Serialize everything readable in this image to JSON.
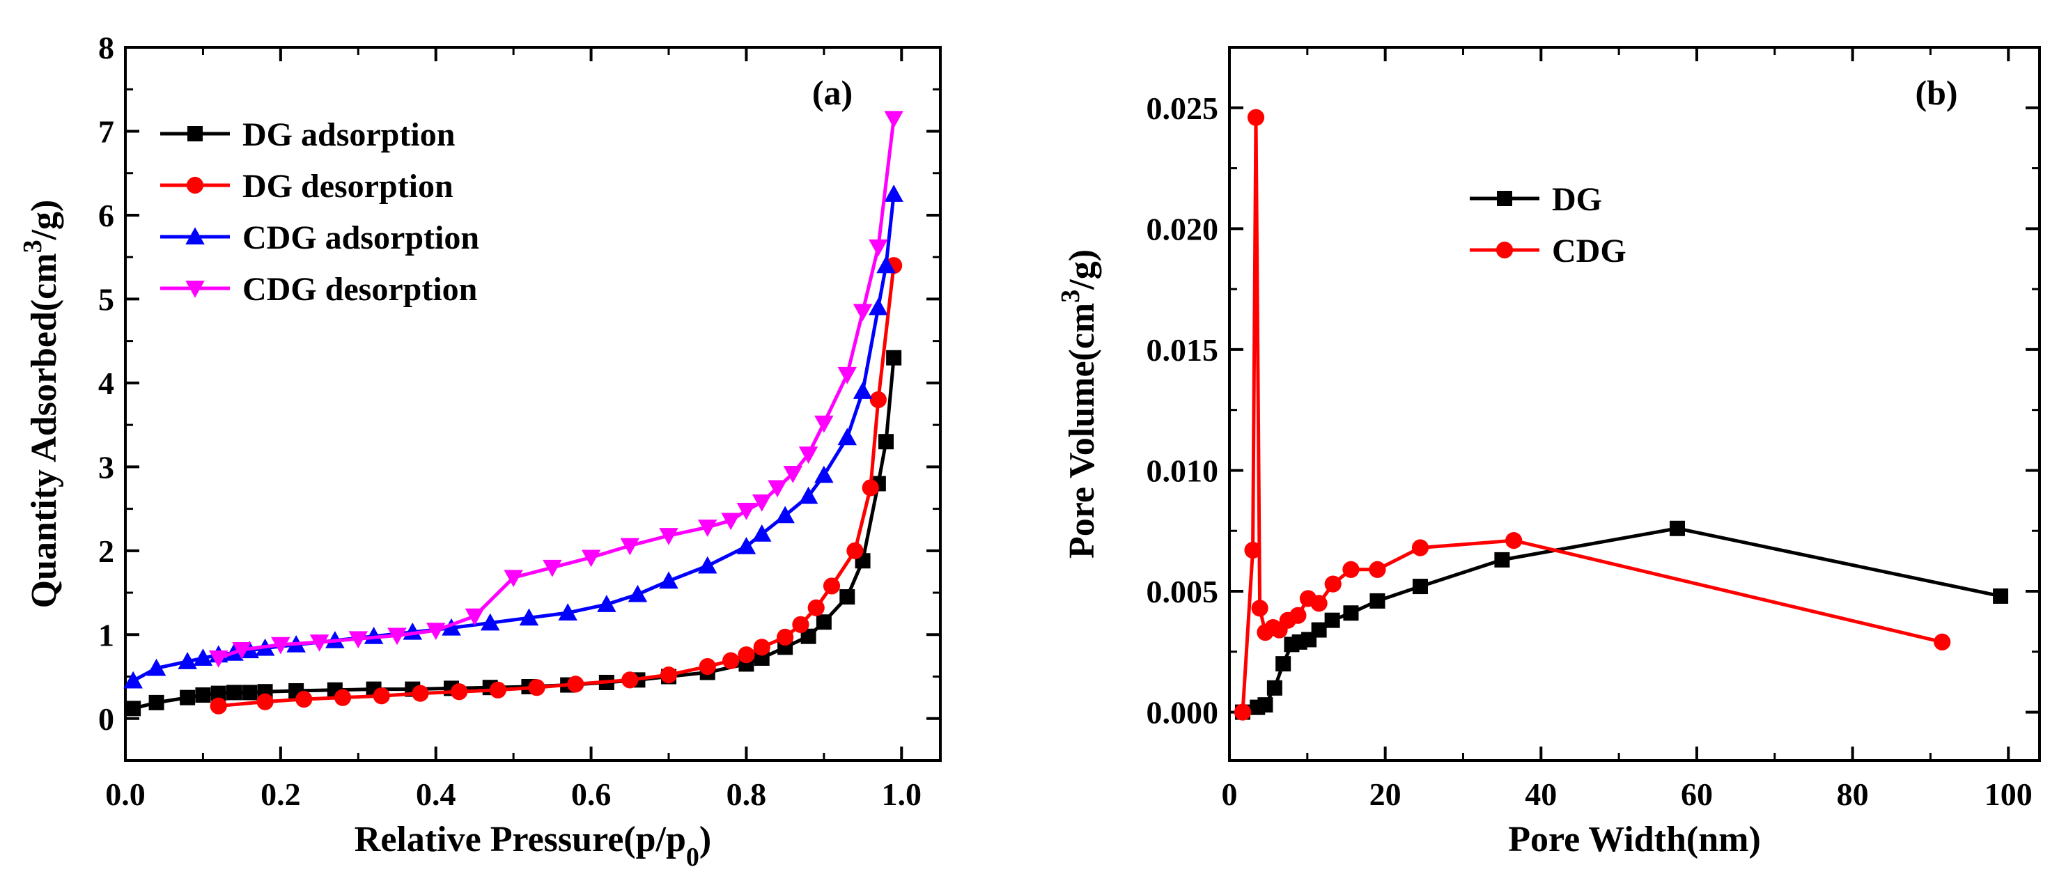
{
  "chart_data": [
    {
      "type": "line",
      "panel_label": "(a)",
      "xlabel": "Relative Pressure(p/p",
      "xlabel_sub": "0",
      "xlabel_suffix": ")",
      "ylabel": "Quantity Adsorbed(cm",
      "ylabel_sup": "3",
      "ylabel_suffix": "/g)",
      "xlim": [
        0.0,
        1.05
      ],
      "ylim": [
        -0.5,
        8.0
      ],
      "xticks": [
        0.0,
        0.2,
        0.4,
        0.6,
        0.8,
        1.0
      ],
      "xtick_labels": [
        "0.0",
        "0.2",
        "0.4",
        "0.6",
        "0.8",
        "1.0"
      ],
      "yticks": [
        0,
        1,
        2,
        3,
        4,
        5,
        6,
        7,
        8
      ],
      "ytick_labels": [
        "0",
        "1",
        "2",
        "3",
        "4",
        "5",
        "6",
        "7",
        "8"
      ],
      "grid": false,
      "legend_position": "top-left",
      "series": [
        {
          "name": "DG  adsorption",
          "color": "#000000",
          "marker": "square",
          "x": [
            0.01,
            0.04,
            0.08,
            0.1,
            0.12,
            0.14,
            0.16,
            0.18,
            0.22,
            0.27,
            0.32,
            0.37,
            0.42,
            0.47,
            0.52,
            0.57,
            0.62,
            0.66,
            0.7,
            0.75,
            0.8,
            0.82,
            0.85,
            0.88,
            0.9,
            0.93,
            0.95,
            0.97,
            0.98,
            0.99
          ],
          "y": [
            0.12,
            0.19,
            0.25,
            0.28,
            0.3,
            0.31,
            0.31,
            0.32,
            0.33,
            0.34,
            0.35,
            0.35,
            0.36,
            0.37,
            0.38,
            0.4,
            0.43,
            0.46,
            0.5,
            0.55,
            0.65,
            0.72,
            0.85,
            0.98,
            1.15,
            1.45,
            1.88,
            2.8,
            3.3,
            4.3
          ]
        },
        {
          "name": "DG  desorption",
          "color": "#ff0000",
          "marker": "circle",
          "x": [
            0.99,
            0.97,
            0.96,
            0.94,
            0.91,
            0.89,
            0.87,
            0.85,
            0.82,
            0.8,
            0.78,
            0.75,
            0.7,
            0.65,
            0.58,
            0.53,
            0.48,
            0.43,
            0.38,
            0.33,
            0.28,
            0.23,
            0.18,
            0.12
          ],
          "y": [
            5.4,
            3.8,
            2.75,
            2.0,
            1.58,
            1.32,
            1.12,
            0.97,
            0.85,
            0.76,
            0.69,
            0.62,
            0.52,
            0.46,
            0.41,
            0.37,
            0.34,
            0.32,
            0.3,
            0.27,
            0.25,
            0.23,
            0.2,
            0.15
          ]
        },
        {
          "name": "CDG  adsorption",
          "color": "#0000ff",
          "marker": "triangle-up",
          "x": [
            0.01,
            0.04,
            0.08,
            0.1,
            0.12,
            0.14,
            0.16,
            0.18,
            0.22,
            0.27,
            0.32,
            0.37,
            0.42,
            0.47,
            0.52,
            0.57,
            0.62,
            0.66,
            0.7,
            0.75,
            0.8,
            0.82,
            0.85,
            0.88,
            0.9,
            0.93,
            0.95,
            0.97,
            0.98,
            0.99
          ],
          "y": [
            0.45,
            0.6,
            0.68,
            0.72,
            0.76,
            0.78,
            0.81,
            0.84,
            0.88,
            0.93,
            0.98,
            1.03,
            1.08,
            1.14,
            1.2,
            1.26,
            1.36,
            1.48,
            1.64,
            1.82,
            2.05,
            2.2,
            2.42,
            2.65,
            2.9,
            3.35,
            3.9,
            4.9,
            5.4,
            6.25
          ]
        },
        {
          "name": "CDG  desorption",
          "color": "#ff00ff",
          "marker": "triangle-down",
          "x": [
            0.99,
            0.97,
            0.95,
            0.93,
            0.9,
            0.88,
            0.86,
            0.84,
            0.82,
            0.8,
            0.78,
            0.75,
            0.7,
            0.65,
            0.6,
            0.55,
            0.5,
            0.45,
            0.4,
            0.35,
            0.3,
            0.25,
            0.2,
            0.15,
            0.12
          ],
          "y": [
            7.15,
            5.62,
            4.85,
            4.1,
            3.52,
            3.15,
            2.92,
            2.75,
            2.58,
            2.48,
            2.36,
            2.28,
            2.18,
            2.06,
            1.92,
            1.8,
            1.68,
            1.22,
            1.05,
            0.99,
            0.95,
            0.91,
            0.88,
            0.82,
            0.72
          ]
        }
      ]
    },
    {
      "type": "line",
      "panel_label": "(b)",
      "xlabel": "Pore Width(nm)",
      "ylabel": "Pore Volume(cm",
      "ylabel_sup": "3",
      "ylabel_suffix": "/g)",
      "xlim": [
        0,
        104
      ],
      "ylim": [
        -0.002,
        0.0275
      ],
      "xticks": [
        0,
        20,
        40,
        60,
        80,
        100
      ],
      "xtick_labels": [
        "0",
        "20",
        "40",
        "60",
        "80",
        "100"
      ],
      "yticks": [
        0.0,
        0.005,
        0.01,
        0.015,
        0.02,
        0.025
      ],
      "ytick_labels": [
        "0.000",
        "0.005",
        "0.010",
        "0.015",
        "0.020",
        "0.025"
      ],
      "grid": false,
      "legend_position": "upper-middle",
      "series": [
        {
          "name": "DG",
          "color": "#000000",
          "marker": "square",
          "x": [
            1.7,
            3.6,
            4.6,
            5.8,
            6.9,
            8.0,
            9.0,
            10.2,
            11.5,
            13.2,
            15.6,
            19.0,
            24.5,
            35.0,
            57.5,
            99.0
          ],
          "y": [
            0.0,
            0.0002,
            0.0003,
            0.001,
            0.002,
            0.0028,
            0.0029,
            0.003,
            0.0034,
            0.0038,
            0.0041,
            0.0046,
            0.0052,
            0.0063,
            0.0076,
            0.0048
          ]
        },
        {
          "name": "CDG",
          "color": "#ff0000",
          "marker": "circle",
          "x": [
            1.7,
            3.0,
            3.4,
            3.9,
            4.6,
            5.6,
            6.4,
            7.5,
            8.8,
            10.1,
            11.5,
            13.3,
            15.6,
            19.0,
            24.5,
            36.5,
            91.5
          ],
          "y": [
            0.0,
            0.0067,
            0.0246,
            0.0043,
            0.0033,
            0.0035,
            0.0034,
            0.0038,
            0.004,
            0.0047,
            0.0045,
            0.0053,
            0.0059,
            0.0059,
            0.0068,
            0.0071,
            0.0029
          ]
        }
      ]
    }
  ]
}
